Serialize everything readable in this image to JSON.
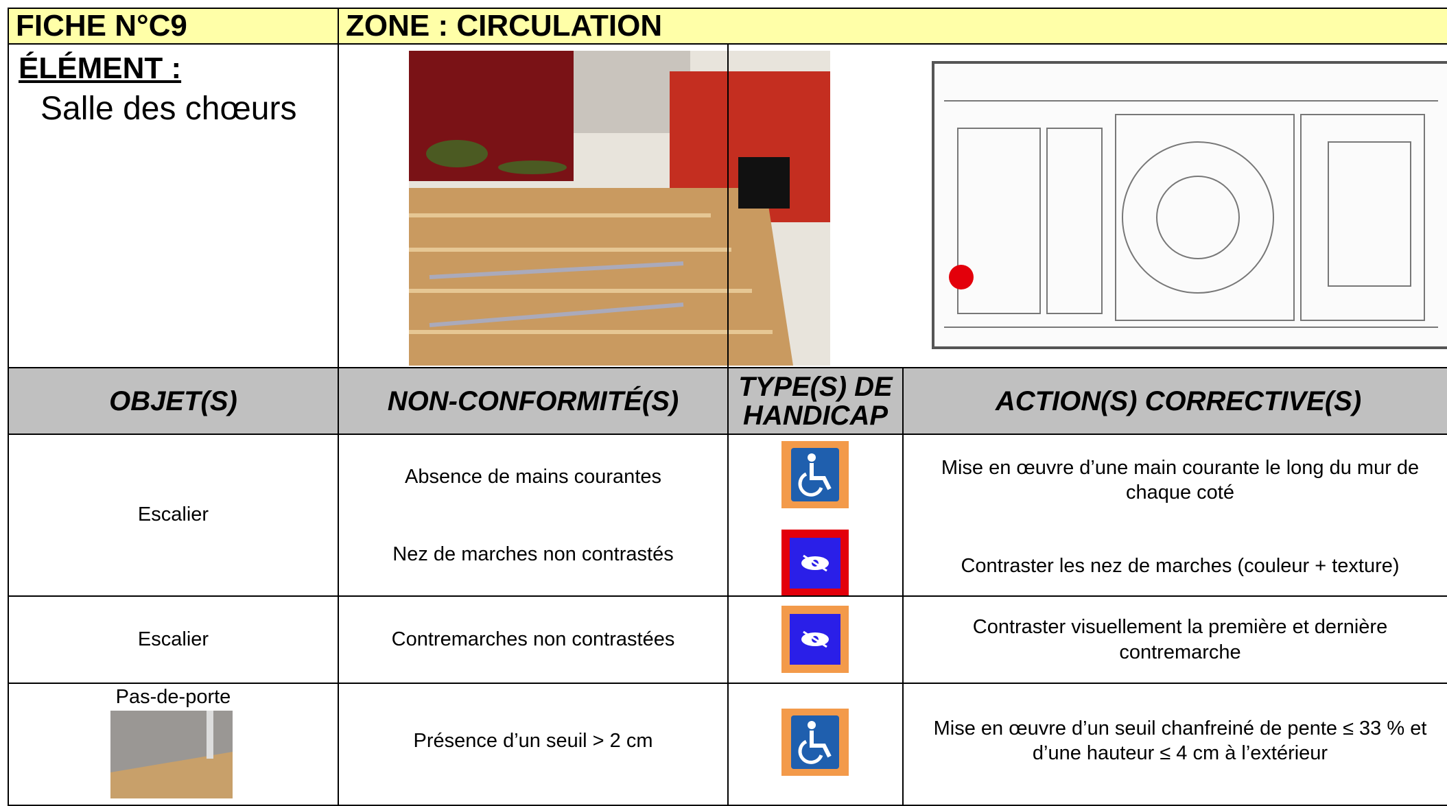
{
  "header": {
    "fiche": "FICHE N°C9",
    "zone": "ZONE : CIRCULATION"
  },
  "element": {
    "label": "ÉLÉMENT :",
    "name": "Salle des chœurs"
  },
  "table": {
    "columns": [
      "OBJET(S)",
      "NON-CONFORMITÉ(S)",
      "TYPE(S) DE HANDICAP",
      "ACTION(S) CORRECTIVE(S)"
    ],
    "rows": [
      {
        "objet": "Escalier",
        "items": [
          {
            "nonconformite": "Absence de mains courantes",
            "action": "Mise en œuvre d’une main courante le long du mur de chaque coté"
          },
          {
            "nonconformite": "Nez de marches non contrastés",
            "action": "Contraster les nez de marches (couleur + texture)"
          }
        ]
      },
      {
        "objet": "Escalier",
        "items": [
          {
            "nonconformite": "Contremarches non contrastées",
            "action": "Contraster visuellement la première et dernière contremarche"
          }
        ]
      },
      {
        "objet": "Pas-de-porte",
        "items": [
          {
            "nonconformite": "Présence d’un seuil > 2 cm",
            "action": "Mise en œuvre d’un seuil chanfreiné de pente ≤ 33 % et d’une hauteur ≤ 4 cm à l’extérieur"
          }
        ]
      }
    ]
  }
}
